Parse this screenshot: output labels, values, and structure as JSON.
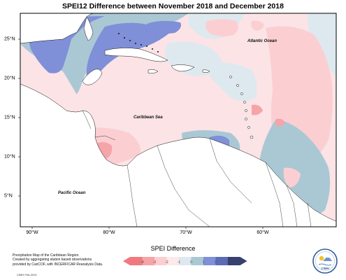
{
  "title": "SPEI12 Difference between November 2018 and December 2018",
  "map": {
    "extent": {
      "lon_min": -93,
      "lon_max": -56,
      "lat_min": 0,
      "lat_max": 28
    },
    "lon_ticks": [
      "90°W",
      "80°W",
      "70°W",
      "60°W"
    ],
    "lat_ticks": [
      "25°N",
      "20°N",
      "15°N",
      "10°N",
      "5°N"
    ],
    "labels": {
      "atlantic": "Atlantic Ocean",
      "caribbean": "Caribbean Sea",
      "pacific": "Pacific Ocean"
    }
  },
  "legend": {
    "title": "SPEI Difference",
    "ticks": [
      "-4",
      "-3",
      "-2",
      "-1",
      "0",
      "1",
      "2",
      "3",
      "4"
    ],
    "colors": [
      "#f0797f",
      "#f5a4a8",
      "#fbcfd2",
      "#fde8ea",
      "#dde9ee",
      "#a9c8d4",
      "#7f8fd8",
      "#5c6bb5",
      "#37406e"
    ]
  },
  "credits": {
    "line1": "Precipitation Map of the Caribbean Region.",
    "line2": "Created by aggregating station based observations",
    "line3": "provided by CariCOF, with INCERFICAR Reanalysis Data.",
    "date": "CIMH Feb-2019"
  },
  "logo": {
    "text": "CIMH",
    "colors": {
      "ring": "#2f5c9a",
      "sun": "#f2c12e"
    }
  }
}
